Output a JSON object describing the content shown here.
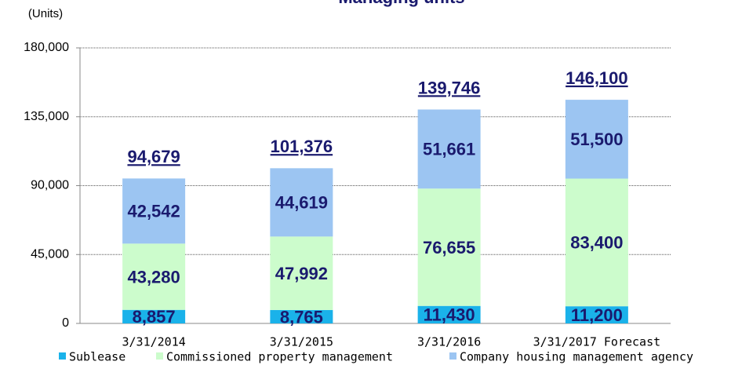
{
  "chart_data": {
    "type": "stacked_bar",
    "title": "Managing units",
    "y_label": "(Units)",
    "categories": [
      "3/31/2014",
      "3/31/2015",
      "3/31/2016",
      "3/31/2017 Forecast"
    ],
    "series": [
      {
        "name": "Sublease",
        "color": "#1ab2ea",
        "values": [
          8857,
          8765,
          11430,
          11200
        ],
        "value_labels": [
          "8,857",
          "8,765",
          "11,430",
          "11,200"
        ]
      },
      {
        "name": "Commissioned property management",
        "color": "#ccfccc",
        "values": [
          43280,
          47992,
          76655,
          83400
        ],
        "value_labels": [
          "43,280",
          "47,992",
          "76,655",
          "83,400"
        ]
      },
      {
        "name": "Company housing management agency",
        "color": "#9cc5f2",
        "values": [
          42542,
          44619,
          51661,
          51500
        ],
        "value_labels": [
          "42,542",
          "44,619",
          "51,661",
          "51,500"
        ]
      }
    ],
    "totals": [
      94679,
      101376,
      139746,
      146100
    ],
    "total_labels": [
      "94,679",
      "101,376",
      "139,746",
      "146,100"
    ],
    "ylim": [
      0,
      180000
    ],
    "yticks": [
      0,
      {
        "value": 45000,
        "label": "45,000"
      },
      {
        "value": 90000,
        "label": "90,000"
      },
      {
        "value": 135000,
        "label": "135,000"
      },
      {
        "value": 180000,
        "label": "180,000"
      }
    ],
    "grid": true,
    "legend": "bottom"
  }
}
